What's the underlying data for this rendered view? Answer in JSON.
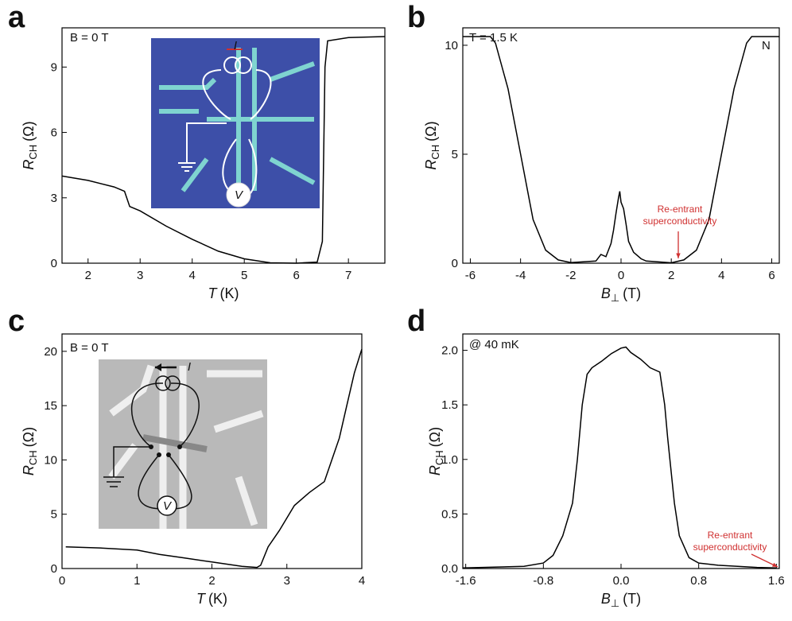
{
  "chart_data": [
    {
      "type": "line",
      "panel_label": "a",
      "annotations": [
        "B = 0 T"
      ],
      "inset_labels": [
        "I",
        "V"
      ],
      "xlabel": {
        "symbol": "T",
        "unit": "(K)"
      },
      "ylabel": {
        "symbol": "R",
        "subscript": "CH",
        "unit": "(Ω)"
      },
      "x": [
        1.5,
        2,
        2.5,
        2.7,
        2.8,
        3,
        3.5,
        4,
        4.5,
        5,
        5.5,
        6,
        6.4,
        6.5,
        6.55,
        6.6,
        7,
        7.7
      ],
      "series": [
        {
          "color": "#000000",
          "values": [
            4.0,
            3.8,
            3.5,
            3.3,
            2.6,
            2.4,
            1.7,
            1.1,
            0.55,
            0.2,
            0.02,
            0.0,
            0.05,
            1.0,
            9.0,
            10.2,
            10.35,
            10.4
          ]
        }
      ],
      "xlim": [
        1.5,
        7.7
      ],
      "ylim": [
        0,
        10.8
      ],
      "xticks": [
        2,
        3,
        4,
        5,
        6,
        7
      ],
      "yticks": [
        0,
        3,
        6,
        9
      ]
    },
    {
      "type": "line",
      "panel_label": "b",
      "annotations": [
        "T = 1.5 K",
        "N"
      ],
      "callout": [
        "Re-entrant",
        "superconductivity"
      ],
      "xlabel": {
        "symbol": "B",
        "subscript": "⊥",
        "unit": "(T)"
      },
      "ylabel": {
        "symbol": "R",
        "subscript": "CH",
        "unit": "(Ω)"
      },
      "x": [
        -6.3,
        -5.2,
        -5,
        -4.5,
        -4,
        -3.5,
        -3,
        -2.5,
        -2,
        -1,
        -0.8,
        -0.6,
        -0.4,
        -0.3,
        -0.2,
        -0.1,
        -0.05,
        0,
        0.1,
        0.2,
        0.3,
        0.5,
        0.8,
        1,
        2,
        2.5,
        3,
        3.5,
        4,
        4.5,
        5,
        5.2,
        6.3
      ],
      "series": [
        {
          "color": "#000000",
          "values": [
            10.4,
            10.4,
            10.1,
            8,
            5,
            2,
            0.6,
            0.15,
            0.03,
            0.1,
            0.4,
            0.3,
            0.9,
            1.5,
            2.3,
            3.0,
            3.3,
            2.8,
            2.5,
            1.8,
            1.0,
            0.5,
            0.2,
            0.1,
            0.02,
            0.15,
            0.6,
            2,
            5,
            8,
            10.1,
            10.4,
            10.4
          ]
        }
      ],
      "xlim": [
        -6.3,
        6.3
      ],
      "ylim": [
        0,
        10.8
      ],
      "xticks": [
        -6,
        -4,
        -2,
        0,
        2,
        4,
        6
      ],
      "yticks": [
        0,
        5,
        10
      ]
    },
    {
      "type": "line",
      "panel_label": "c",
      "annotations": [
        "B = 0 T"
      ],
      "inset_labels": [
        "I",
        "V"
      ],
      "xlabel": {
        "symbol": "T",
        "unit": "(K)"
      },
      "ylabel": {
        "symbol": "R",
        "subscript": "CH",
        "unit": "(Ω)"
      },
      "x": [
        0.05,
        0.5,
        1,
        1.3,
        1.6,
        2,
        2.4,
        2.6,
        2.65,
        2.75,
        2.9,
        3.1,
        3.3,
        3.5,
        3.6,
        3.7,
        3.8,
        3.9,
        4
      ],
      "series": [
        {
          "color": "#000000",
          "values": [
            2.0,
            1.9,
            1.7,
            1.3,
            1.0,
            0.6,
            0.2,
            0.1,
            0.3,
            2,
            3.5,
            5.8,
            7,
            8,
            10,
            12,
            15,
            18,
            20.2
          ]
        }
      ],
      "xlim": [
        0,
        4
      ],
      "ylim": [
        0,
        21.6
      ],
      "xticks": [
        0,
        1,
        2,
        3,
        4
      ],
      "yticks": [
        0,
        5,
        10,
        15,
        20
      ]
    },
    {
      "type": "line",
      "panel_label": "d",
      "annotations": [
        "@ 40 mK"
      ],
      "callout": [
        "Re-entrant",
        "superconductivity"
      ],
      "xlabel": {
        "symbol": "B",
        "subscript": "⊥",
        "unit": "(T)"
      },
      "ylabel": {
        "symbol": "R",
        "subscript": "CH",
        "unit": "(Ω)"
      },
      "x": [
        -1.63,
        -1,
        -0.8,
        -0.7,
        -0.6,
        -0.5,
        -0.45,
        -0.4,
        -0.35,
        -0.3,
        -0.2,
        -0.1,
        0,
        0.05,
        0.1,
        0.2,
        0.3,
        0.4,
        0.45,
        0.48,
        0.55,
        0.6,
        0.7,
        0.8,
        1,
        1.4,
        1.6
      ],
      "series": [
        {
          "color": "#000000",
          "values": [
            0.005,
            0.02,
            0.05,
            0.12,
            0.3,
            0.6,
            1.0,
            1.5,
            1.78,
            1.84,
            1.9,
            1.97,
            2.02,
            2.03,
            1.98,
            1.92,
            1.84,
            1.8,
            1.5,
            1.2,
            0.6,
            0.3,
            0.1,
            0.05,
            0.03,
            0.01,
            0.005
          ]
        }
      ],
      "xlim": [
        -1.63,
        1.63
      ],
      "ylim": [
        0,
        2.15
      ],
      "xticks": [
        -1.6,
        -0.8,
        {
          "value": 0,
          "label": "0.0"
        },
        0.8,
        1.6
      ],
      "yticks": [
        {
          "value": 0,
          "label": "0.0"
        },
        0.5,
        {
          "value": 1,
          "label": "1.0"
        },
        1.5,
        {
          "value": 2,
          "label": "2.0"
        }
      ]
    }
  ]
}
